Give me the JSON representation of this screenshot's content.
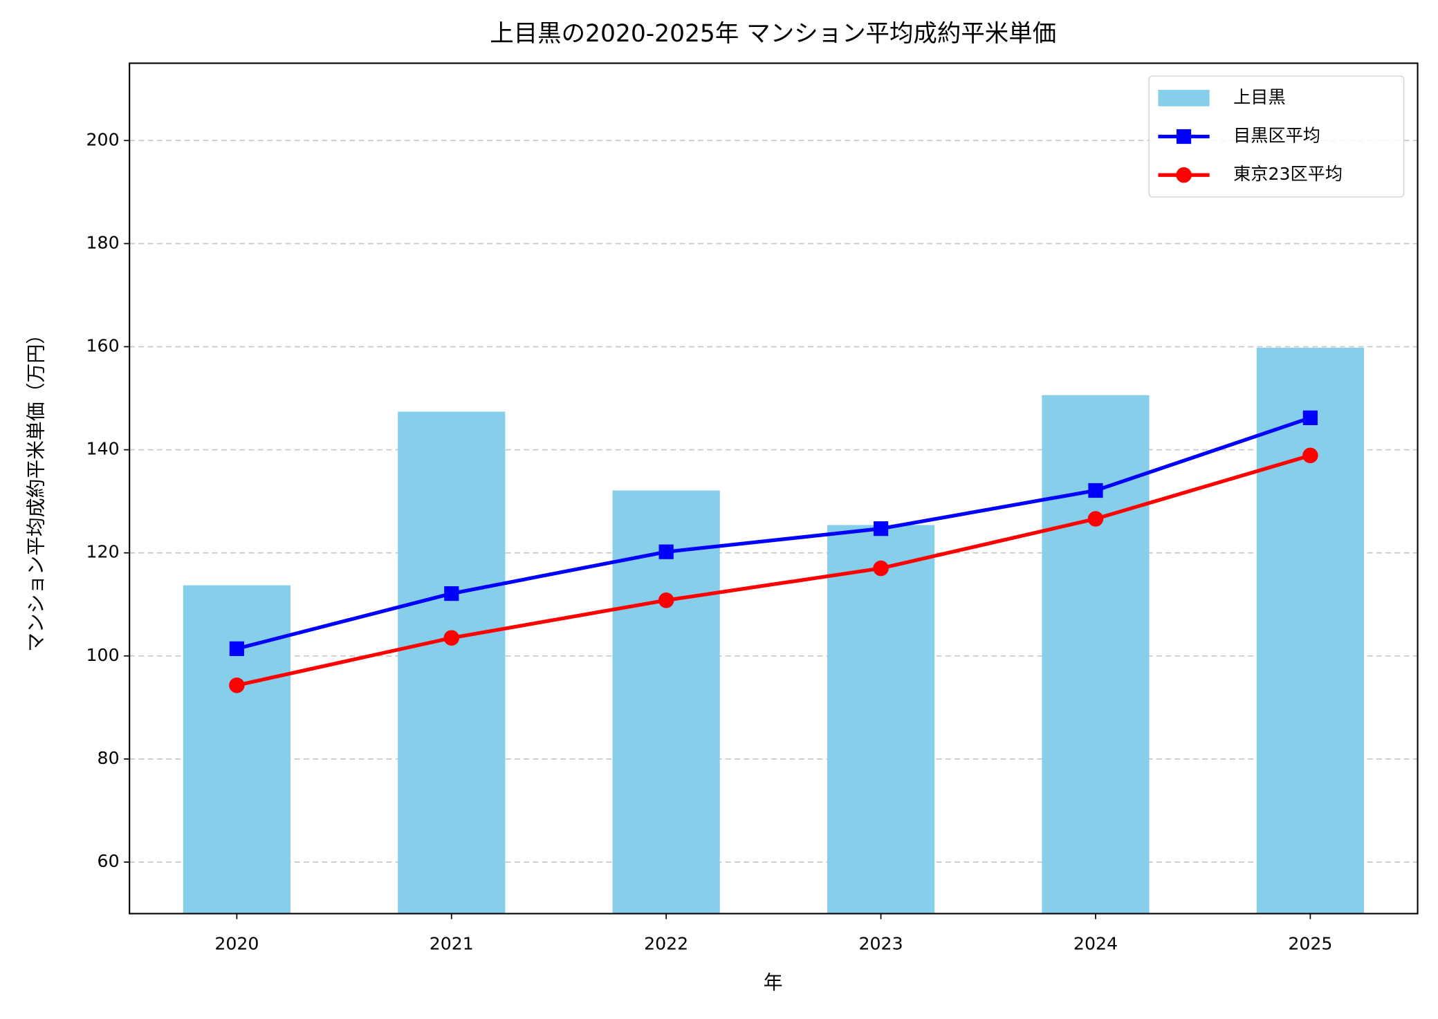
{
  "chart_data": {
    "type": "bar",
    "title": "上目黒の2020-2025年 マンション平均成約平米単価",
    "x_label": "年",
    "y_label": "マンション平均成約平米単価（万円）",
    "categories": [
      "2020",
      "2021",
      "2022",
      "2023",
      "2024",
      "2025"
    ],
    "series": [
      {
        "name": "上目黒",
        "type": "bar",
        "color": "#87ceeb",
        "values": [
          113.7,
          147.4,
          132.1,
          125.4,
          150.6,
          159.8
        ]
      },
      {
        "name": "目黒区平均",
        "type": "line",
        "marker": "square",
        "color": "#0000ff",
        "values": [
          101.4,
          112.1,
          120.2,
          124.7,
          132.1,
          146.2
        ]
      },
      {
        "name": "東京23区平均",
        "type": "line",
        "marker": "circle",
        "color": "#ff0000",
        "values": [
          94.3,
          103.5,
          110.8,
          117.0,
          126.6,
          138.9
        ]
      }
    ],
    "ylim": [
      50,
      215
    ],
    "yticks": [
      60,
      80,
      100,
      120,
      140,
      160,
      180,
      200
    ],
    "grid": true,
    "legend": "upper right"
  }
}
